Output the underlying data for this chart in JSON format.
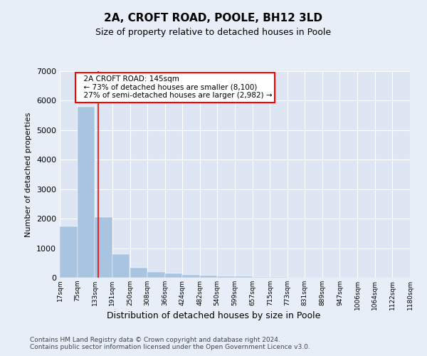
{
  "title": "2A, CROFT ROAD, POOLE, BH12 3LD",
  "subtitle": "Size of property relative to detached houses in Poole",
  "xlabel": "Distribution of detached houses by size in Poole",
  "ylabel": "Number of detached properties",
  "property_size": 145,
  "annotation_line1": "2A CROFT ROAD: 145sqm",
  "annotation_line2": "← 73% of detached houses are smaller (8,100)",
  "annotation_line3": "27% of semi-detached houses are larger (2,982) →",
  "bar_color": "#a8c4e0",
  "bar_edge_color": "#a8c4e0",
  "vertical_line_color": "red",
  "background_color": "#e8eef7",
  "plot_bg_color": "#dde6f2",
  "bin_edges": [
    17,
    75,
    133,
    191,
    250,
    308,
    366,
    424,
    482,
    540,
    599,
    657,
    715,
    773,
    831,
    889,
    947,
    1006,
    1064,
    1122,
    1180
  ],
  "bar_heights": [
    1750,
    5800,
    2050,
    790,
    345,
    195,
    145,
    95,
    75,
    55,
    45,
    30,
    20,
    10,
    5,
    5,
    3,
    2,
    1,
    1
  ],
  "ylim": [
    0,
    7000
  ],
  "yticks": [
    0,
    1000,
    2000,
    3000,
    4000,
    5000,
    6000,
    7000
  ],
  "footer_line1": "Contains HM Land Registry data © Crown copyright and database right 2024.",
  "footer_line2": "Contains public sector information licensed under the Open Government Licence v3.0."
}
